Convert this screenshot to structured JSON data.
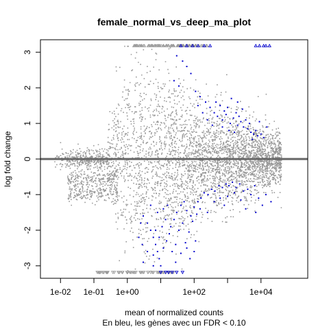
{
  "chart_data": {
    "type": "scatter",
    "title": "female_normal_vs_deep_ma_plot",
    "xlabel": "mean of normalized counts",
    "subtitle": "En bleu, les gènes avec un FDR < 0.10",
    "ylabel": "log fold change",
    "x_scale": "log10",
    "xlim": [
      0.00251,
      251000
    ],
    "ylim": [
      -3.35,
      3.35
    ],
    "x_ticks": [
      0.01,
      0.1,
      1,
      100,
      10000
    ],
    "x_tick_labels": [
      "1e-02",
      "1e-01",
      "1e+00",
      "1e+02",
      "1e+04"
    ],
    "y_ticks": [
      -3,
      -2,
      -1,
      0,
      1,
      2,
      3
    ],
    "y_tick_labels": [
      "-3",
      "-2",
      "-1",
      "0",
      "1",
      "2",
      "3"
    ],
    "reference_line": {
      "y": 0,
      "color": "#666666"
    },
    "clip_threshold": 3.18,
    "colors": {
      "non_significant": "#999999",
      "significant": "#0000cc",
      "frame": "#000000"
    },
    "series": [
      {
        "role": "significant",
        "color": "#0000cc",
        "points": [
          [
            40,
            3.18
          ],
          [
            60,
            3.18
          ],
          [
            90,
            3.18
          ],
          [
            130,
            3.18
          ],
          [
            200,
            3.18
          ],
          [
            300,
            3.18
          ],
          [
            7000,
            3.18
          ],
          [
            9000,
            3.18
          ],
          [
            12000,
            3.18
          ],
          [
            18000,
            3.18
          ],
          [
            14000,
            3.18
          ],
          [
            30,
            2.9
          ],
          [
            45,
            2.75
          ],
          [
            60,
            2.6
          ],
          [
            80,
            2.4
          ],
          [
            25,
            2.2
          ],
          [
            35,
            2.05
          ],
          [
            110,
            1.9
          ],
          [
            150,
            1.75
          ],
          [
            220,
            1.6
          ],
          [
            300,
            1.45
          ],
          [
            400,
            1.3
          ],
          [
            500,
            1.2
          ],
          [
            700,
            1.1
          ],
          [
            900,
            1.25
          ],
          [
            1200,
            1.0
          ],
          [
            1500,
            1.15
          ],
          [
            2000,
            0.95
          ],
          [
            2500,
            1.05
          ],
          [
            3000,
            0.9
          ],
          [
            4000,
            0.85
          ],
          [
            5000,
            0.75
          ],
          [
            6000,
            0.7
          ],
          [
            7000,
            0.8
          ],
          [
            8000,
            0.65
          ],
          [
            10000,
            0.7
          ],
          [
            12000,
            0.6
          ],
          [
            15000,
            0.9
          ],
          [
            600,
            1.5
          ],
          [
            800,
            1.35
          ],
          [
            1000,
            1.45
          ],
          [
            1800,
            1.3
          ],
          [
            2200,
            1.2
          ],
          [
            3500,
            1.1
          ],
          [
            4500,
            1.0
          ],
          [
            250,
            1.1
          ],
          [
            350,
            0.95
          ],
          [
            180,
            1.3
          ],
          [
            130,
            1.5
          ],
          [
            1100,
            0.8
          ],
          [
            1600,
            0.75
          ],
          [
            2800,
            1.4
          ],
          [
            5500,
            0.55
          ],
          [
            700,
            0.9
          ],
          [
            450,
            1.6
          ],
          [
            9000,
            1.05
          ],
          [
            2000,
            1.6
          ],
          [
            1300,
            1.7
          ],
          [
            3,
            -1.6
          ],
          [
            4,
            -1.8
          ],
          [
            5,
            -2.0
          ],
          [
            6,
            -2.2
          ],
          [
            7,
            -2.4
          ],
          [
            8,
            -2.6
          ],
          [
            9,
            -2.8
          ],
          [
            10,
            -3.0
          ],
          [
            12,
            -2.5
          ],
          [
            15,
            -2.3
          ],
          [
            18,
            -2.1
          ],
          [
            20,
            -1.9
          ],
          [
            25,
            -1.7
          ],
          [
            30,
            -1.5
          ],
          [
            40,
            -1.3
          ],
          [
            50,
            -1.2
          ],
          [
            60,
            -1.45
          ],
          [
            80,
            -1.6
          ],
          [
            100,
            -1.35
          ],
          [
            130,
            -1.2
          ],
          [
            160,
            -1.1
          ],
          [
            200,
            -0.95
          ],
          [
            260,
            -1.0
          ],
          [
            330,
            -0.85
          ],
          [
            420,
            -0.9
          ],
          [
            550,
            -0.75
          ],
          [
            700,
            -0.8
          ],
          [
            900,
            -0.7
          ],
          [
            1100,
            -0.75
          ],
          [
            1400,
            -0.65
          ],
          [
            1800,
            -0.8
          ],
          [
            2300,
            -0.7
          ],
          [
            3000,
            -0.9
          ],
          [
            4000,
            -0.85
          ],
          [
            5000,
            -1.0
          ],
          [
            6500,
            -0.75
          ],
          [
            8500,
            -1.1
          ],
          [
            11000,
            -1.3
          ],
          [
            14000,
            -1.0
          ],
          [
            20000,
            -1.2
          ],
          [
            3,
            -2.9
          ],
          [
            4,
            -2.6
          ],
          [
            6,
            -2.7
          ],
          [
            9,
            -2.2
          ],
          [
            11,
            -1.9
          ],
          [
            14,
            -1.7
          ],
          [
            22,
            -2.6
          ],
          [
            28,
            -2.4
          ],
          [
            35,
            -2.0
          ],
          [
            45,
            -1.8
          ],
          [
            70,
            -2.05
          ],
          [
            90,
            -1.75
          ],
          [
            120,
            -1.55
          ],
          [
            150,
            -1.4
          ],
          [
            60,
            -2.5
          ],
          [
            110,
            -2.3
          ],
          [
            17,
            -3.18
          ],
          [
            22,
            -3.18
          ],
          [
            30,
            -3.18
          ],
          [
            45,
            -3.18
          ],
          [
            14,
            -3.18
          ],
          [
            10,
            -3.18
          ],
          [
            28,
            -2.9
          ],
          [
            40,
            -2.65
          ],
          [
            55,
            -2.35
          ],
          [
            75,
            -2.8
          ],
          [
            100,
            -2.6
          ],
          [
            8,
            -1.5
          ],
          [
            12,
            -1.4
          ],
          [
            16,
            -1.3
          ],
          [
            250,
            -1.5
          ],
          [
            400,
            -1.2
          ],
          [
            600,
            -1.1
          ],
          [
            800,
            -1.3
          ],
          [
            1000,
            -1.05
          ],
          [
            1600,
            -0.95
          ],
          [
            2500,
            -1.15
          ],
          [
            3500,
            -1.4
          ],
          [
            7000,
            -1.5
          ],
          [
            5,
            -1.3
          ],
          [
            2.5,
            -1.8
          ],
          [
            2.2,
            -2.2
          ],
          [
            2.8,
            -2.4
          ],
          [
            6,
            -3.0
          ],
          [
            7,
            -2.0
          ]
        ]
      }
    ]
  }
}
